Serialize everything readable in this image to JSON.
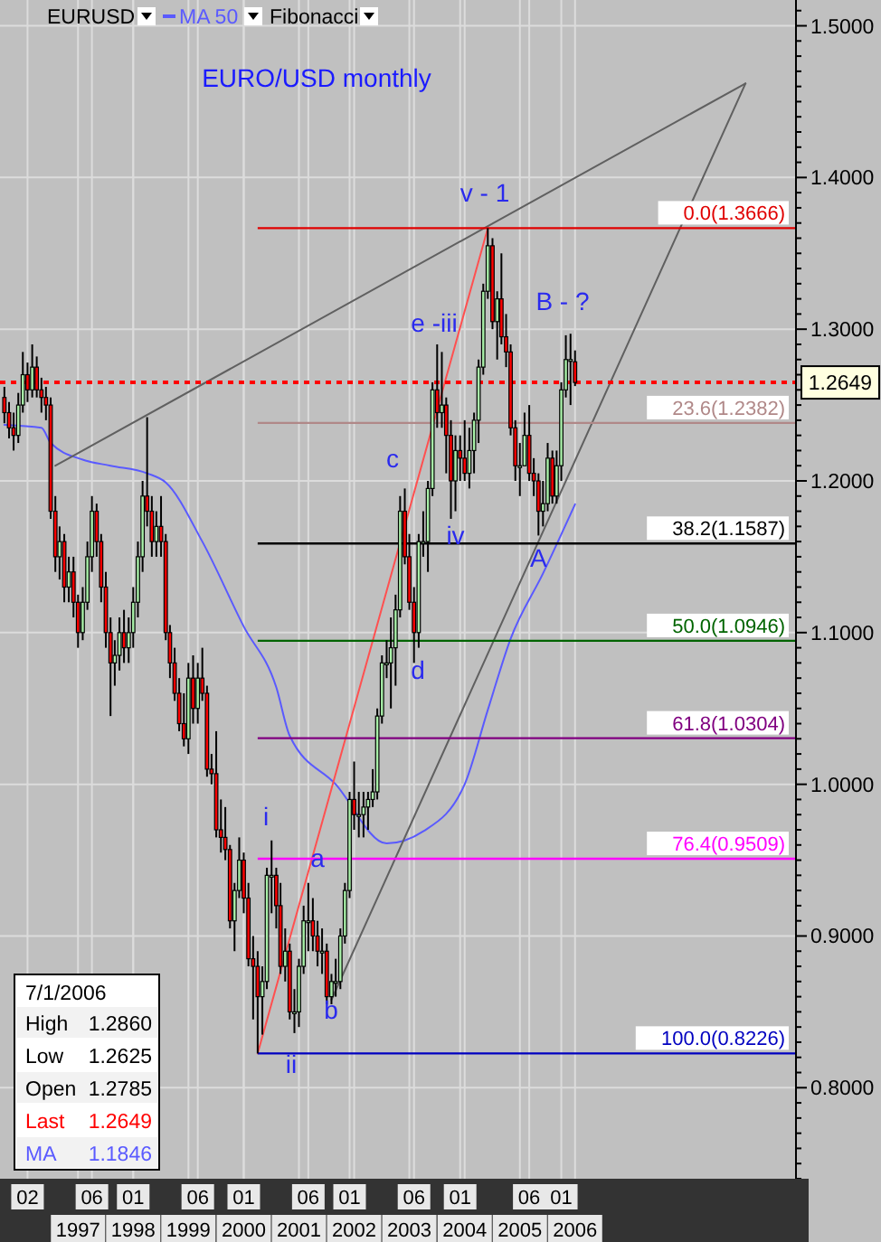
{
  "chart_data": {
    "type": "candlestick",
    "title": "EURO/USD monthly",
    "x": [
      "1996-03",
      "1996-04",
      "1996-05",
      "1996-06",
      "1996-07",
      "1996-08",
      "1996-09",
      "1996-10",
      "1996-11",
      "1996-12",
      "1997-01",
      "1997-02",
      "1997-03",
      "1997-04",
      "1997-05",
      "1997-06",
      "1997-07",
      "1997-08",
      "1997-09",
      "1997-10",
      "1997-11",
      "1997-12",
      "1998-01",
      "1998-02",
      "1998-03",
      "1998-04",
      "1998-05",
      "1998-06",
      "1998-07",
      "1998-08",
      "1998-09",
      "1998-10",
      "1998-11",
      "1998-12",
      "1999-01",
      "1999-02",
      "1999-03",
      "1999-04",
      "1999-05",
      "1999-06",
      "1999-07",
      "1999-08",
      "1999-09",
      "1999-10",
      "1999-11",
      "1999-12",
      "2000-01",
      "2000-02",
      "2000-03",
      "2000-04",
      "2000-05",
      "2000-06",
      "2000-07",
      "2000-08",
      "2000-09",
      "2000-10",
      "2000-11",
      "2000-12",
      "2001-01",
      "2001-02",
      "2001-03",
      "2001-04",
      "2001-05",
      "2001-06",
      "2001-07",
      "2001-08",
      "2001-09",
      "2001-10",
      "2001-11",
      "2001-12",
      "2002-01",
      "2002-02",
      "2002-03",
      "2002-04",
      "2002-05",
      "2002-06",
      "2002-07",
      "2002-08",
      "2002-09",
      "2002-10",
      "2002-11",
      "2002-12",
      "2003-01",
      "2003-02",
      "2003-03",
      "2003-04",
      "2003-05",
      "2003-06",
      "2003-07",
      "2003-08",
      "2003-09",
      "2003-10",
      "2003-11",
      "2003-12",
      "2004-01",
      "2004-02",
      "2004-03",
      "2004-04",
      "2004-05",
      "2004-06",
      "2004-07",
      "2004-08",
      "2004-09",
      "2004-10",
      "2004-11",
      "2004-12",
      "2005-01",
      "2005-02",
      "2005-03",
      "2005-04",
      "2005-05",
      "2005-06",
      "2005-07",
      "2005-08",
      "2005-09",
      "2005-10",
      "2005-11",
      "2005-12",
      "2006-01",
      "2006-02",
      "2006-03",
      "2006-04",
      "2006-05",
      "2006-06",
      "2006-07"
    ],
    "ohlc": [
      [
        1.255,
        1.262,
        1.238,
        1.245
      ],
      [
        1.245,
        1.252,
        1.228,
        1.235
      ],
      [
        1.235,
        1.245,
        1.22,
        1.23
      ],
      [
        1.23,
        1.258,
        1.225,
        1.25
      ],
      [
        1.25,
        1.285,
        1.245,
        1.27
      ],
      [
        1.27,
        1.278,
        1.252,
        1.26
      ],
      [
        1.26,
        1.29,
        1.255,
        1.275
      ],
      [
        1.275,
        1.282,
        1.255,
        1.26
      ],
      [
        1.26,
        1.268,
        1.245,
        1.255
      ],
      [
        1.255,
        1.262,
        1.24,
        1.25
      ],
      [
        1.25,
        1.255,
        1.175,
        1.18
      ],
      [
        1.18,
        1.19,
        1.14,
        1.15
      ],
      [
        1.15,
        1.17,
        1.135,
        1.16
      ],
      [
        1.16,
        1.165,
        1.12,
        1.13
      ],
      [
        1.13,
        1.15,
        1.12,
        1.14
      ],
      [
        1.14,
        1.15,
        1.11,
        1.12
      ],
      [
        1.12,
        1.125,
        1.09,
        1.1
      ],
      [
        1.1,
        1.13,
        1.095,
        1.12
      ],
      [
        1.12,
        1.16,
        1.115,
        1.15
      ],
      [
        1.15,
        1.19,
        1.14,
        1.18
      ],
      [
        1.18,
        1.185,
        1.15,
        1.16
      ],
      [
        1.16,
        1.165,
        1.12,
        1.13
      ],
      [
        1.13,
        1.14,
        1.09,
        1.1
      ],
      [
        1.1,
        1.11,
        1.045,
        1.08
      ],
      [
        1.08,
        1.095,
        1.065,
        1.085
      ],
      [
        1.085,
        1.11,
        1.075,
        1.1
      ],
      [
        1.1,
        1.115,
        1.08,
        1.09
      ],
      [
        1.09,
        1.11,
        1.08,
        1.1
      ],
      [
        1.1,
        1.13,
        1.09,
        1.12
      ],
      [
        1.12,
        1.16,
        1.11,
        1.15
      ],
      [
        1.15,
        1.2,
        1.14,
        1.19
      ],
      [
        1.19,
        1.242,
        1.17,
        1.18
      ],
      [
        1.18,
        1.19,
        1.15,
        1.16
      ],
      [
        1.16,
        1.18,
        1.15,
        1.17
      ],
      [
        1.17,
        1.19,
        1.15,
        1.16
      ],
      [
        1.16,
        1.165,
        1.095,
        1.1
      ],
      [
        1.1,
        1.105,
        1.07,
        1.08
      ],
      [
        1.08,
        1.09,
        1.055,
        1.06
      ],
      [
        1.06,
        1.07,
        1.035,
        1.04
      ],
      [
        1.04,
        1.06,
        1.025,
        1.03
      ],
      [
        1.03,
        1.08,
        1.02,
        1.07
      ],
      [
        1.07,
        1.085,
        1.04,
        1.05
      ],
      [
        1.05,
        1.08,
        1.04,
        1.07
      ],
      [
        1.07,
        1.09,
        1.055,
        1.06
      ],
      [
        1.06,
        1.065,
        1.005,
        1.01
      ],
      [
        1.01,
        1.02,
        1.0,
        1.007
      ],
      [
        1.007,
        1.035,
        0.965,
        0.97
      ],
      [
        0.97,
        0.99,
        0.955,
        0.965
      ],
      [
        0.965,
        0.985,
        0.95,
        0.957
      ],
      [
        0.957,
        0.96,
        0.905,
        0.91
      ],
      [
        0.91,
        0.935,
        0.89,
        0.93
      ],
      [
        0.93,
        0.965,
        0.925,
        0.95
      ],
      [
        0.95,
        0.955,
        0.915,
        0.925
      ],
      [
        0.925,
        0.935,
        0.88,
        0.885
      ],
      [
        0.885,
        0.9,
        0.845,
        0.88
      ],
      [
        0.88,
        0.89,
        0.8226,
        0.86
      ],
      [
        0.86,
        0.88,
        0.835,
        0.87
      ],
      [
        0.87,
        0.945,
        0.865,
        0.94
      ],
      [
        0.94,
        0.963,
        0.915,
        0.94
      ],
      [
        0.94,
        0.945,
        0.905,
        0.92
      ],
      [
        0.92,
        0.935,
        0.875,
        0.88
      ],
      [
        0.88,
        0.905,
        0.87,
        0.89
      ],
      [
        0.89,
        0.895,
        0.845,
        0.85
      ],
      [
        0.85,
        0.865,
        0.836,
        0.85
      ],
      [
        0.85,
        0.885,
        0.84,
        0.88
      ],
      [
        0.88,
        0.92,
        0.875,
        0.91
      ],
      [
        0.91,
        0.935,
        0.89,
        0.91
      ],
      [
        0.91,
        0.925,
        0.89,
        0.9
      ],
      [
        0.9,
        0.91,
        0.88,
        0.89
      ],
      [
        0.89,
        0.905,
        0.875,
        0.89
      ],
      [
        0.89,
        0.895,
        0.855,
        0.86
      ],
      [
        0.86,
        0.875,
        0.855,
        0.87
      ],
      [
        0.87,
        0.885,
        0.86,
        0.87
      ],
      [
        0.87,
        0.905,
        0.865,
        0.9
      ],
      [
        0.9,
        0.935,
        0.895,
        0.93
      ],
      [
        0.93,
        0.995,
        0.925,
        0.99
      ],
      [
        0.99,
        1.015,
        0.97,
        0.98
      ],
      [
        0.98,
        0.995,
        0.965,
        0.98
      ],
      [
        0.98,
        0.995,
        0.965,
        0.985
      ],
      [
        0.985,
        0.995,
        0.97,
        0.99
      ],
      [
        0.99,
        1.01,
        0.985,
        0.995
      ],
      [
        0.995,
        1.05,
        0.99,
        1.045
      ],
      [
        1.045,
        1.085,
        1.04,
        1.08
      ],
      [
        1.08,
        1.095,
        1.07,
        1.08
      ],
      [
        1.08,
        1.11,
        1.05,
        1.09
      ],
      [
        1.09,
        1.125,
        1.065,
        1.115
      ],
      [
        1.115,
        1.19,
        1.11,
        1.18
      ],
      [
        1.18,
        1.195,
        1.145,
        1.15
      ],
      [
        1.15,
        1.165,
        1.115,
        1.12
      ],
      [
        1.12,
        1.13,
        1.08,
        1.1
      ],
      [
        1.1,
        1.165,
        1.09,
        1.16
      ],
      [
        1.16,
        1.18,
        1.15,
        1.16
      ],
      [
        1.16,
        1.2,
        1.14,
        1.195
      ],
      [
        1.195,
        1.265,
        1.19,
        1.26
      ],
      [
        1.26,
        1.29,
        1.235,
        1.245
      ],
      [
        1.245,
        1.285,
        1.235,
        1.25
      ],
      [
        1.25,
        1.255,
        1.205,
        1.23
      ],
      [
        1.23,
        1.24,
        1.175,
        1.2
      ],
      [
        1.2,
        1.23,
        1.18,
        1.22
      ],
      [
        1.22,
        1.23,
        1.2,
        1.215
      ],
      [
        1.215,
        1.24,
        1.2,
        1.205
      ],
      [
        1.205,
        1.235,
        1.195,
        1.22
      ],
      [
        1.22,
        1.245,
        1.205,
        1.24
      ],
      [
        1.24,
        1.28,
        1.225,
        1.275
      ],
      [
        1.275,
        1.33,
        1.27,
        1.325
      ],
      [
        1.325,
        1.3666,
        1.32,
        1.355
      ],
      [
        1.355,
        1.36,
        1.3,
        1.305
      ],
      [
        1.305,
        1.325,
        1.28,
        1.32
      ],
      [
        1.32,
        1.35,
        1.29,
        1.295
      ],
      [
        1.295,
        1.31,
        1.275,
        1.285
      ],
      [
        1.285,
        1.29,
        1.23,
        1.235
      ],
      [
        1.235,
        1.24,
        1.2,
        1.21
      ],
      [
        1.21,
        1.225,
        1.19,
        1.21
      ],
      [
        1.21,
        1.245,
        1.21,
        1.23
      ],
      [
        1.23,
        1.25,
        1.2,
        1.205
      ],
      [
        1.205,
        1.215,
        1.19,
        1.2
      ],
      [
        1.2,
        1.205,
        1.164,
        1.18
      ],
      [
        1.18,
        1.2,
        1.17,
        1.185
      ],
      [
        1.185,
        1.225,
        1.18,
        1.215
      ],
      [
        1.215,
        1.22,
        1.185,
        1.19
      ],
      [
        1.19,
        1.22,
        1.185,
        1.21
      ],
      [
        1.21,
        1.265,
        1.2,
        1.26
      ],
      [
        1.26,
        1.296,
        1.255,
        1.28
      ],
      [
        1.28,
        1.297,
        1.25,
        1.28
      ],
      [
        1.2785,
        1.286,
        1.2625,
        1.2649
      ]
    ],
    "series": [
      {
        "type": "line",
        "name": "MA 50",
        "color": "#5a5aff",
        "x": [
          "1996-03",
          "1996-11",
          "1997-01",
          "1997-08",
          "1998-02",
          "1998-10",
          "1999-02",
          "1999-10",
          "2000-07",
          "2001-02",
          "2001-05",
          "2002-03",
          "2003-02",
          "2003-10",
          "2004-07",
          "2004-12",
          "2005-05",
          "2005-12",
          "2006-07"
        ],
        "values": [
          1.237,
          1.235,
          1.225,
          1.214,
          1.21,
          1.205,
          1.199,
          1.16,
          1.104,
          1.064,
          1.032,
          1.0,
          0.961,
          0.969,
          1.0,
          1.049,
          1.096,
          1.139,
          1.1846
        ]
      },
      {
        "type": "line",
        "color": "#606060",
        "x": [
          "1997-02",
          "2009-08"
        ],
        "values": [
          1.21,
          1.462
        ]
      },
      {
        "type": "line",
        "color": "#606060",
        "x": [
          "2002-02",
          "2009-08"
        ],
        "values": [
          0.858,
          1.462
        ]
      },
      {
        "type": "line",
        "color": "#ff5050",
        "x": [
          "2000-10",
          "2004-12"
        ],
        "values": [
          0.8226,
          1.3666
        ]
      }
    ],
    "xlim": [
      "1996-02",
      "2010-07"
    ],
    "xticks": [
      {
        "value": "1997-07",
        "label": "1997"
      },
      {
        "value": "1998-07",
        "label": "1998"
      },
      {
        "value": "1999-07",
        "label": "1999"
      },
      {
        "value": "2000-07",
        "label": "2000"
      },
      {
        "value": "2001-07",
        "label": "2001"
      },
      {
        "value": "2002-07",
        "label": "2002"
      },
      {
        "value": "2003-07",
        "label": "2003"
      },
      {
        "value": "2004-07",
        "label": "2004"
      },
      {
        "value": "2005-07",
        "label": "2005"
      },
      {
        "value": "2006-07",
        "label": "2006"
      }
    ],
    "x2lim": [
      "1996-02",
      "2010-07"
    ],
    "x2ticks": [
      {
        "value": "1996-08",
        "label": "02"
      },
      {
        "value": "1997-10",
        "label": "06"
      },
      {
        "value": "1998-07",
        "label": "01"
      },
      {
        "value": "1999-09",
        "label": "06"
      },
      {
        "value": "2000-07",
        "label": "01"
      },
      {
        "value": "2001-09",
        "label": "06"
      },
      {
        "value": "2002-06",
        "label": "01"
      },
      {
        "value": "2003-08",
        "label": "06"
      },
      {
        "value": "2004-06",
        "label": "01"
      },
      {
        "value": "2005-09",
        "label": "06"
      },
      {
        "value": "2006-04",
        "label": "01"
      }
    ],
    "ylim": [
      0.74,
      1.517
    ],
    "yticks": [
      {
        "value": 0.8,
        "label": "0.8000"
      },
      {
        "value": 0.9,
        "label": "0.9000"
      },
      {
        "value": 1.0,
        "label": "1.0000"
      },
      {
        "value": 1.1,
        "label": "1.1000"
      },
      {
        "value": 1.2,
        "label": "1.2000"
      },
      {
        "value": 1.3,
        "label": "1.3000"
      },
      {
        "value": 1.4,
        "label": "1.4000"
      },
      {
        "value": 1.5,
        "label": "1.5000"
      }
    ],
    "grid": true,
    "legend": "top left",
    "ref_lines": [
      {
        "axis": "y",
        "value": 1.2649,
        "label": "1.2649",
        "color": "#ff0000",
        "line_style": "dotted"
      },
      {
        "axis": "y",
        "value": 1.3666,
        "label": "0.0(1.3666)",
        "color": "#e00000"
      },
      {
        "axis": "y",
        "value": 1.2382,
        "label": "23.6(1.2382)",
        "color": "#b08888"
      },
      {
        "axis": "y",
        "value": 1.1587,
        "label": "38.2(1.1587)",
        "color": "#000000"
      },
      {
        "axis": "y",
        "value": 1.0946,
        "label": "50.0(1.0946)",
        "color": "#006400"
      },
      {
        "axis": "y",
        "value": 1.0304,
        "label": "61.8(1.0304)",
        "color": "#800080"
      },
      {
        "axis": "y",
        "value": 0.9509,
        "label": "76.4(0.9509)",
        "color": "#ff00ff"
      },
      {
        "axis": "y",
        "value": 0.8226,
        "label": "100.0(0.8226)",
        "color": "#0000c0"
      }
    ],
    "annotations": [
      "EURUSD",
      "Fibonacci",
      "7/1/2006",
      "High",
      "Low",
      "Open",
      "Last",
      "MA",
      "1.2860",
      "1.2625",
      "1.2785",
      "1.2649",
      "1.1846",
      "i",
      "ii",
      "b",
      "c",
      "d",
      "e -iii",
      "v - 1",
      "B - ?",
      {
        "text": "a",
        "x": "2001-11",
        "y": 0.95
      },
      {
        "text": "iv",
        "x": "2004-05",
        "y": 1.163
      },
      {
        "text": "A",
        "x": "2005-11",
        "y": 1.148
      }
    ]
  }
}
